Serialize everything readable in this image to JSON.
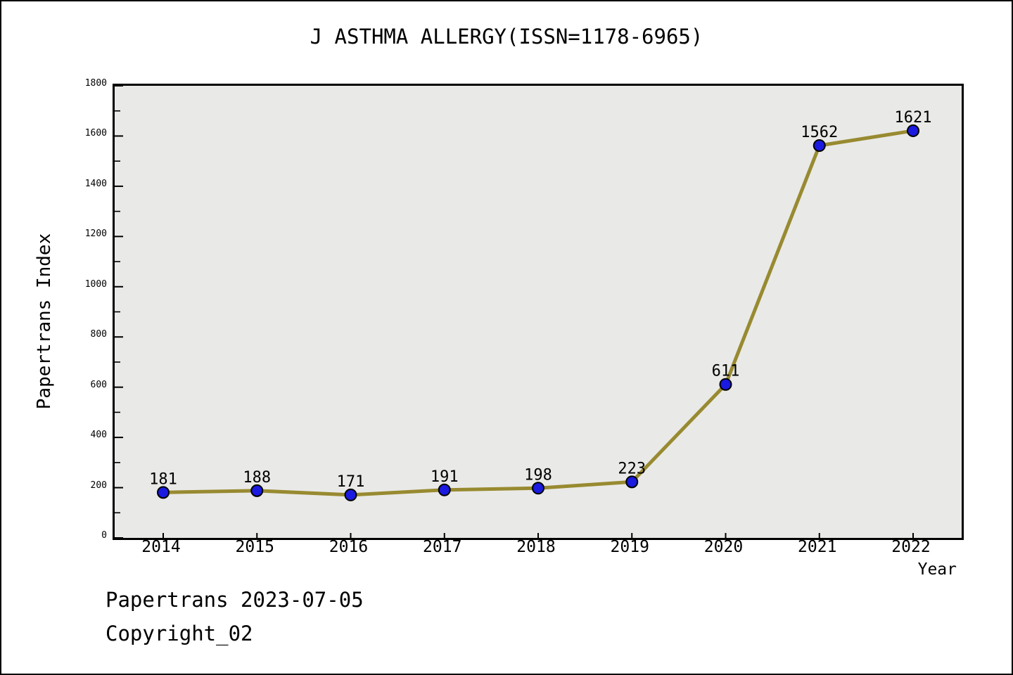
{
  "chart": {
    "title": "J ASTHMA ALLERGY(ISSN=1178-6965)",
    "xlabel": "Year",
    "ylabel": "Papertrans Index"
  },
  "footer": {
    "line1": "Papertrans 2023-07-05",
    "line2": "Copyright_02"
  },
  "chart_data": {
    "type": "line",
    "title": "J ASTHMA ALLERGY(ISSN=1178-6965)",
    "xlabel": "Year",
    "ylabel": "Papertrans Index",
    "categories": [
      2014,
      2015,
      2016,
      2017,
      2018,
      2019,
      2020,
      2021,
      2022
    ],
    "values": [
      181,
      188,
      171,
      191,
      198,
      223,
      611,
      1562,
      1621
    ],
    "point_labels": [
      "181",
      "188",
      "171",
      "191",
      "198",
      "223",
      "611",
      "1562",
      "1621"
    ],
    "ylim": [
      0,
      1800
    ],
    "y_major_tick_step": 200,
    "y_minor_tick_step": 100,
    "grid": false,
    "legend": "none",
    "colors": {
      "line": "#988a30",
      "marker_fill": "#1a1ae0",
      "marker_edge": "#000000",
      "plot_background": "#e9e9e7",
      "axis": "#000000",
      "text": "#000000"
    }
  }
}
